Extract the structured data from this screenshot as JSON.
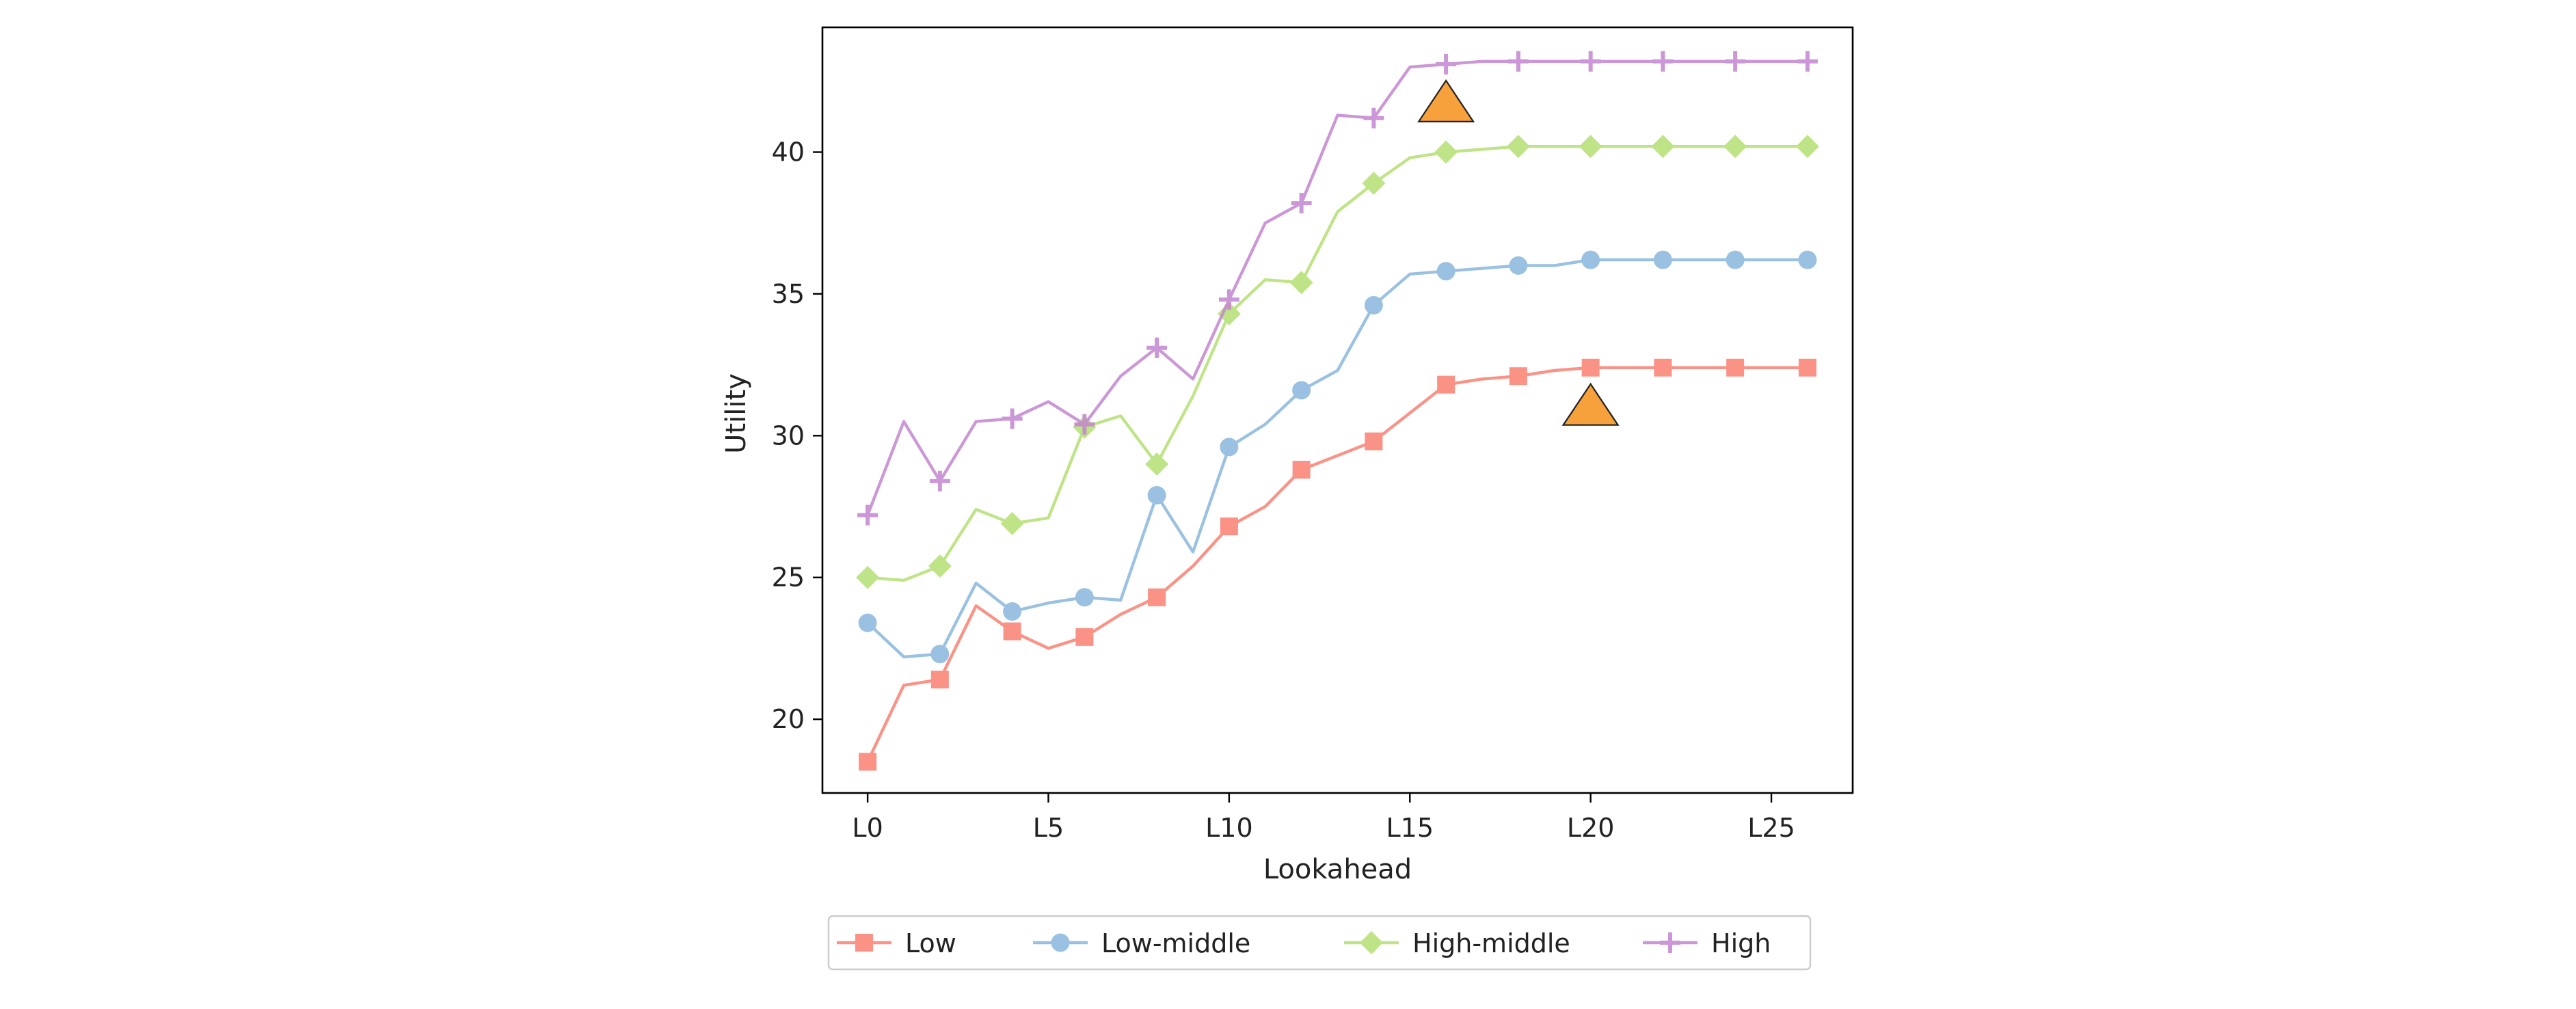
{
  "chart_data": {
    "type": "line",
    "title": "",
    "xlabel": "Lookahead",
    "ylabel": "Utility",
    "xlim": [
      -1.25,
      27.25
    ],
    "ylim": [
      17.4,
      44.4
    ],
    "x": [
      0,
      1,
      2,
      3,
      4,
      5,
      6,
      7,
      8,
      9,
      10,
      11,
      12,
      13,
      14,
      15,
      16,
      17,
      18,
      19,
      20,
      21,
      22,
      23,
      24,
      25,
      26
    ],
    "x_ticks": [
      {
        "value": 0,
        "label": "L0"
      },
      {
        "value": 5,
        "label": "L5"
      },
      {
        "value": 10,
        "label": "L10"
      },
      {
        "value": 15,
        "label": "L15"
      },
      {
        "value": 20,
        "label": "L20"
      },
      {
        "value": 25,
        "label": "L25"
      }
    ],
    "y_ticks": [
      {
        "value": 20,
        "label": "20"
      },
      {
        "value": 25,
        "label": "25"
      },
      {
        "value": 30,
        "label": "30"
      },
      {
        "value": 35,
        "label": "35"
      },
      {
        "value": 40,
        "label": "40"
      }
    ],
    "marker_every": 2,
    "grid": false,
    "legend_position": "below-center",
    "series": [
      {
        "name": "Low",
        "color": "#fa8072",
        "marker": "square",
        "values": [
          18.5,
          21.2,
          21.4,
          24.0,
          23.1,
          22.5,
          22.9,
          23.7,
          24.3,
          25.4,
          26.8,
          27.5,
          28.8,
          29.3,
          29.8,
          30.8,
          31.8,
          32.0,
          32.1,
          32.3,
          32.4,
          32.4,
          32.4,
          32.4,
          32.4,
          32.4,
          32.4
        ]
      },
      {
        "name": "Low-middle",
        "color": "#89b7dc",
        "marker": "circle",
        "values": [
          23.4,
          22.2,
          22.3,
          24.8,
          23.8,
          24.1,
          24.3,
          24.2,
          27.9,
          25.9,
          29.6,
          30.4,
          31.6,
          32.3,
          34.6,
          35.7,
          35.8,
          35.9,
          36.0,
          36.0,
          36.2,
          36.2,
          36.2,
          36.2,
          36.2,
          36.2,
          36.2
        ]
      },
      {
        "name": "High-middle",
        "color": "#b5e073",
        "marker": "diamond",
        "values": [
          25.0,
          24.9,
          25.4,
          27.4,
          26.9,
          27.1,
          30.3,
          30.7,
          29.0,
          31.4,
          34.3,
          35.5,
          35.4,
          37.9,
          38.9,
          39.8,
          40.0,
          40.1,
          40.2,
          40.2,
          40.2,
          40.2,
          40.2,
          40.2,
          40.2,
          40.2,
          40.2
        ]
      },
      {
        "name": "High",
        "color": "#c486cf",
        "marker": "plus",
        "values": [
          27.2,
          30.5,
          28.4,
          30.5,
          30.6,
          31.2,
          30.4,
          32.1,
          33.1,
          32.0,
          34.8,
          37.5,
          38.2,
          41.3,
          41.2,
          43.0,
          43.1,
          43.2,
          43.2,
          43.2,
          43.2,
          43.2,
          43.2,
          43.2,
          43.2,
          43.2,
          43.2
        ]
      }
    ],
    "annotations": [
      {
        "type": "triangle",
        "x": 16,
        "y": 41.8,
        "color": "#f7a13d"
      },
      {
        "type": "triangle",
        "x": 20,
        "y": 31.1,
        "color": "#f7a13d"
      }
    ]
  }
}
